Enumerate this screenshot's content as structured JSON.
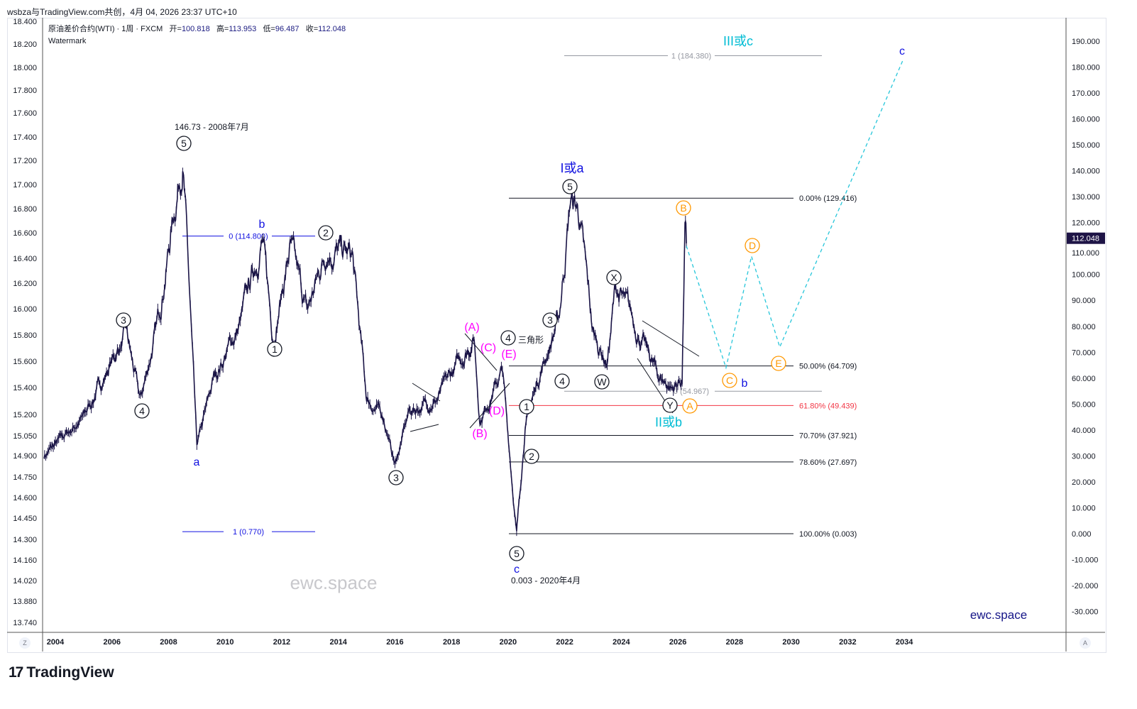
{
  "header": {
    "credit": "wsbza与TradingView.com共创，4月 04, 2026 23:37 UTC+10"
  },
  "legend": {
    "symbol": "原油差价合约(WTI) · 1周 · FXCM",
    "open_label": "开=",
    "open": "100.818",
    "high_label": "高=",
    "high": "113.953",
    "low_label": "低=",
    "low": "96.487",
    "close_label": "收=",
    "close": "112.048",
    "watermark_label": "Watermark"
  },
  "watermark": "ewc.space",
  "brand": "ewc.space",
  "logo": {
    "text": "TradingView",
    "mark": "17"
  },
  "axis_buttons": {
    "left": "Z",
    "right": "A"
  },
  "colors": {
    "price": "#1a1446",
    "black": "#131722",
    "blue": "#1010e0",
    "magenta": "#ff00ff",
    "orange": "#ff9800",
    "cyan": "#00bcd4",
    "red": "#f23645",
    "gray": "#9598a1"
  },
  "chart_data": {
    "type": "line",
    "title": "原油差价合约(WTI) · 1周 · FXCM",
    "current_price": "112.048",
    "x_ticks": [
      "2004",
      "2006",
      "2008",
      "2010",
      "2012",
      "2014",
      "2016",
      "2018",
      "2020",
      "2022",
      "2024",
      "2026",
      "2028",
      "2030",
      "2032",
      "2034"
    ],
    "right_ticks": [
      "190.000",
      "180.000",
      "170.000",
      "160.000",
      "150.000",
      "140.000",
      "130.000",
      "120.000",
      "110.000",
      "100.000",
      "90.000",
      "80.000",
      "70.000",
      "60.000",
      "50.000",
      "40.000",
      "30.000",
      "20.000",
      "10.000",
      "0.000",
      "-10.000",
      "-20.000",
      "-30.000"
    ],
    "left_ticks": [
      "18.400",
      "18.200",
      "18.000",
      "17.800",
      "17.600",
      "17.400",
      "17.200",
      "17.000",
      "16.800",
      "16.600",
      "16.400",
      "16.200",
      "16.000",
      "15.800",
      "15.600",
      "15.400",
      "15.200",
      "15.050",
      "14.900",
      "14.750",
      "14.600",
      "14.450",
      "14.300",
      "14.160",
      "14.020",
      "13.880",
      "13.740"
    ],
    "ylim": [
      -30,
      190
    ],
    "xlim": [
      2003.5,
      2035.5
    ],
    "series_keypoints": [
      [
        2003.6,
        30
      ],
      [
        2005.0,
        45
      ],
      [
        2006.5,
        77
      ],
      [
        2007.0,
        51
      ],
      [
        2007.6,
        80
      ],
      [
        2008.5,
        147
      ],
      [
        2009.0,
        33
      ],
      [
        2009.6,
        60
      ],
      [
        2010.5,
        80
      ],
      [
        2011.3,
        114
      ],
      [
        2011.7,
        76
      ],
      [
        2012.3,
        110
      ],
      [
        2012.9,
        85
      ],
      [
        2013.6,
        111
      ],
      [
        2014.5,
        106
      ],
      [
        2015.0,
        52
      ],
      [
        2015.6,
        45
      ],
      [
        2016.0,
        26.5
      ],
      [
        2016.5,
        47
      ],
      [
        2017.5,
        52
      ],
      [
        2018.8,
        76
      ],
      [
        2019.0,
        44
      ],
      [
        2019.8,
        63
      ],
      [
        2020.3,
        0
      ],
      [
        2020.6,
        41
      ],
      [
        2021.0,
        58
      ],
      [
        2021.8,
        83
      ],
      [
        2022.2,
        129
      ],
      [
        2022.5,
        124
      ],
      [
        2023.0,
        77
      ],
      [
        2023.5,
        66
      ],
      [
        2023.8,
        95
      ],
      [
        2024.5,
        80
      ],
      [
        2025.3,
        61
      ],
      [
        2025.8,
        56
      ],
      [
        2026.15,
        60
      ],
      [
        2026.25,
        119
      ],
      [
        2026.3,
        112
      ]
    ],
    "projection": [
      [
        2026.3,
        111
      ],
      [
        2027.7,
        64
      ],
      [
        2028.6,
        107
      ],
      [
        2029.6,
        72
      ],
      [
        2033.95,
        182.6
      ]
    ],
    "fib_main": [
      {
        "label": "0.00% (129.416)",
        "value": 129.416
      },
      {
        "label": "50.00% (64.709)",
        "value": 64.709
      },
      {
        "label": "61.80% (49.439)",
        "value": 49.439
      },
      {
        "label": "70.70% (37.921)",
        "value": 37.921
      },
      {
        "label": "78.60% (27.697)",
        "value": 27.697
      },
      {
        "label": "100.00% (0.003)",
        "value": 0.003
      }
    ],
    "fib_ext": [
      {
        "label": "1 (184.380)",
        "value": 184.38
      },
      {
        "label": "0 (54.967)",
        "value": 54.967
      }
    ],
    "fib_old": [
      {
        "label": "0 (114.800)",
        "value": 114.8
      },
      {
        "label": "1 (0.770)",
        "value": 0.77
      }
    ],
    "annotations": [
      "146.73 - 2008年7月",
      "5",
      "3",
      "4",
      "a",
      "b",
      "2",
      "1",
      "3",
      "(A)",
      "(C)",
      "(E)",
      "(D)",
      "(B)",
      "4",
      "三角形",
      "1",
      "2",
      "5",
      "c",
      "0.003 - 2020年4月",
      "3",
      "4",
      "W",
      "X",
      "Y",
      "I或a",
      "5",
      "B",
      "A",
      "C",
      "b",
      "D",
      "E",
      "II或b",
      "III或c",
      "c"
    ]
  }
}
